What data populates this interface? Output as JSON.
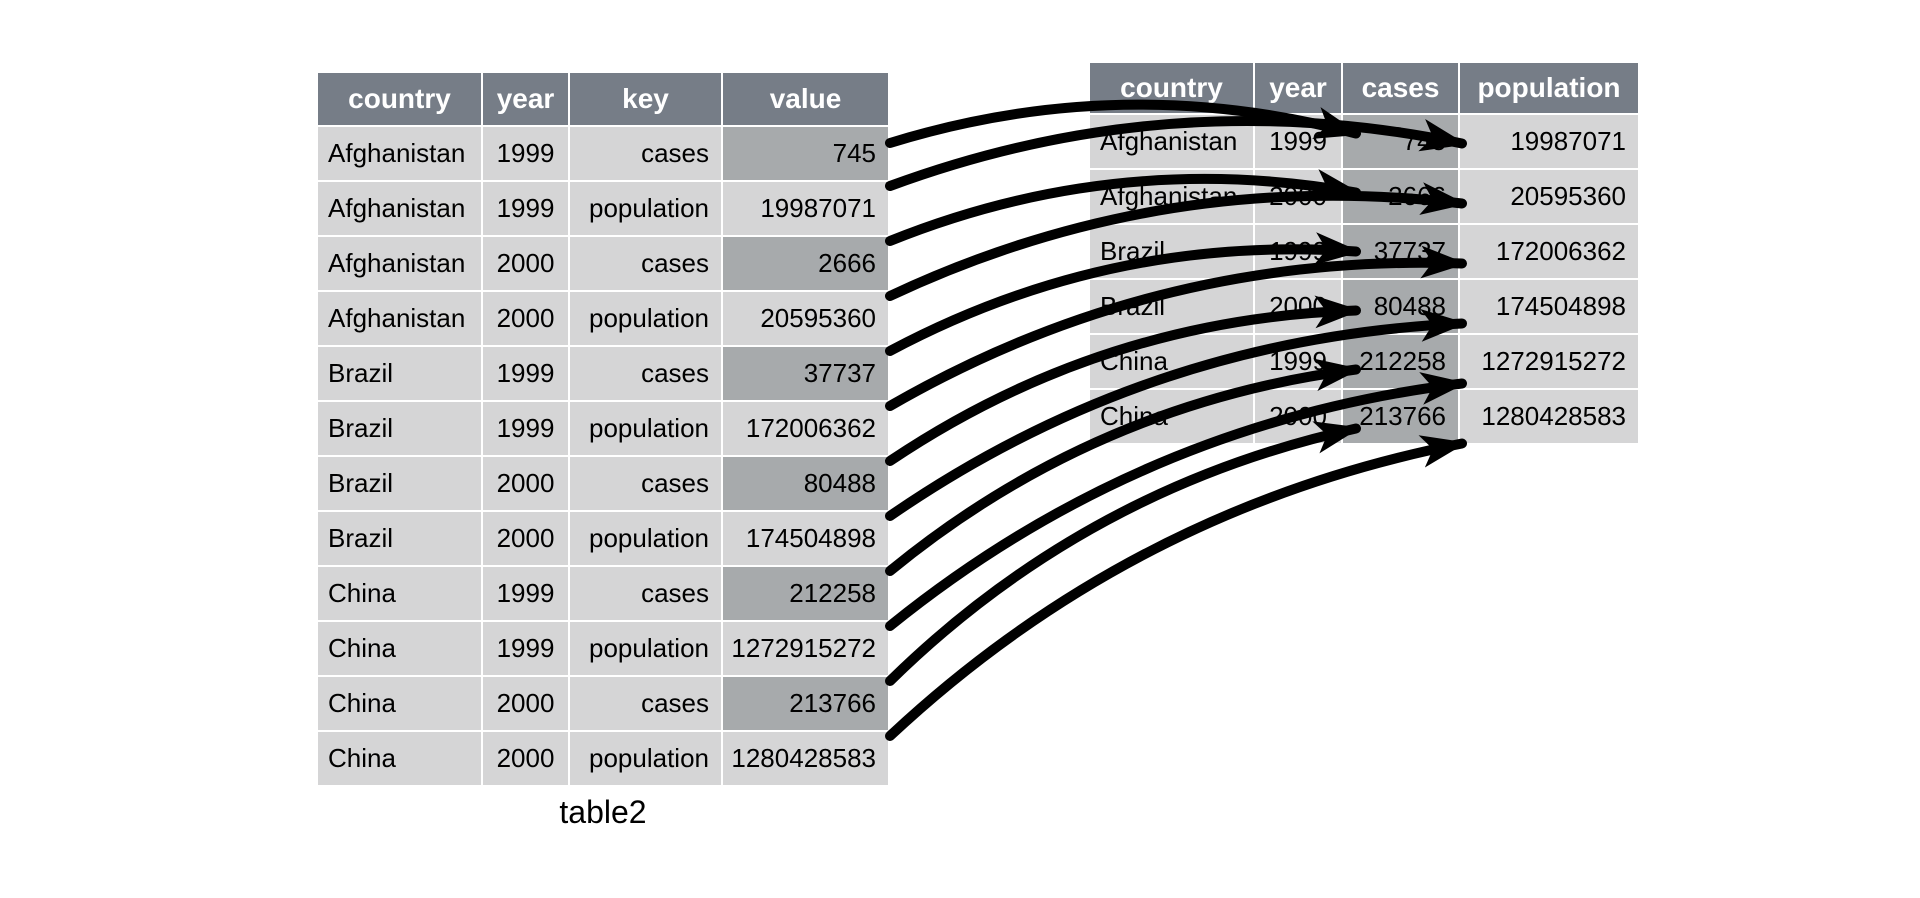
{
  "diagram": {
    "caption": "table2",
    "colors": {
      "header_bg": "#767d87",
      "header_text": "#ffffff",
      "cell_bg": "#d5d5d6",
      "highlight_bg": "#a7aaac",
      "cell_text": "#000000",
      "arrow": "#000000",
      "background": "#ffffff"
    },
    "left_table": {
      "columns": [
        {
          "label": "country",
          "align": "al"
        },
        {
          "label": "year",
          "align": "ac"
        },
        {
          "label": "key",
          "align": "ar"
        },
        {
          "label": "value",
          "align": "ar"
        }
      ],
      "rows": [
        {
          "country": "Afghanistan",
          "year": "1999",
          "key": "cases",
          "value": "745",
          "highlight": true
        },
        {
          "country": "Afghanistan",
          "year": "1999",
          "key": "population",
          "value": "19987071",
          "highlight": false
        },
        {
          "country": "Afghanistan",
          "year": "2000",
          "key": "cases",
          "value": "2666",
          "highlight": true
        },
        {
          "country": "Afghanistan",
          "year": "2000",
          "key": "population",
          "value": "20595360",
          "highlight": false
        },
        {
          "country": "Brazil",
          "year": "1999",
          "key": "cases",
          "value": "37737",
          "highlight": true
        },
        {
          "country": "Brazil",
          "year": "1999",
          "key": "population",
          "value": "172006362",
          "highlight": false
        },
        {
          "country": "Brazil",
          "year": "2000",
          "key": "cases",
          "value": "80488",
          "highlight": true
        },
        {
          "country": "Brazil",
          "year": "2000",
          "key": "population",
          "value": "174504898",
          "highlight": false
        },
        {
          "country": "China",
          "year": "1999",
          "key": "cases",
          "value": "212258",
          "highlight": true
        },
        {
          "country": "China",
          "year": "1999",
          "key": "population",
          "value": "1272915272",
          "highlight": false
        },
        {
          "country": "China",
          "year": "2000",
          "key": "cases",
          "value": "213766",
          "highlight": true
        },
        {
          "country": "China",
          "year": "2000",
          "key": "population",
          "value": "1280428583",
          "highlight": false
        }
      ]
    },
    "right_table": {
      "columns": [
        {
          "label": "country",
          "align": "al"
        },
        {
          "label": "year",
          "align": "ac"
        },
        {
          "label": "cases",
          "align": "ar"
        },
        {
          "label": "population",
          "align": "ar"
        }
      ],
      "rows": [
        {
          "country": "Afghanistan",
          "year": "1999",
          "cases": "745",
          "population": "19987071"
        },
        {
          "country": "Afghanistan",
          "year": "2000",
          "cases": "2666",
          "population": "20595360"
        },
        {
          "country": "Brazil",
          "year": "1999",
          "cases": "37737",
          "population": "172006362"
        },
        {
          "country": "Brazil",
          "year": "2000",
          "cases": "80488",
          "population": "174504898"
        },
        {
          "country": "China",
          "year": "1999",
          "cases": "212258",
          "population": "1272915272"
        },
        {
          "country": "China",
          "year": "2000",
          "cases": "213766",
          "population": "1280428583"
        }
      ]
    },
    "arrows": [
      {
        "from_row": 0,
        "to_row": 0,
        "to_col": "cases"
      },
      {
        "from_row": 1,
        "to_row": 0,
        "to_col": "population"
      },
      {
        "from_row": 2,
        "to_row": 1,
        "to_col": "cases"
      },
      {
        "from_row": 3,
        "to_row": 1,
        "to_col": "population"
      },
      {
        "from_row": 4,
        "to_row": 2,
        "to_col": "cases"
      },
      {
        "from_row": 5,
        "to_row": 2,
        "to_col": "population"
      },
      {
        "from_row": 6,
        "to_row": 3,
        "to_col": "cases"
      },
      {
        "from_row": 7,
        "to_row": 3,
        "to_col": "population"
      },
      {
        "from_row": 8,
        "to_row": 4,
        "to_col": "cases"
      },
      {
        "from_row": 9,
        "to_row": 4,
        "to_col": "population"
      },
      {
        "from_row": 10,
        "to_row": 5,
        "to_col": "cases"
      },
      {
        "from_row": 11,
        "to_row": 5,
        "to_col": "population"
      }
    ]
  }
}
